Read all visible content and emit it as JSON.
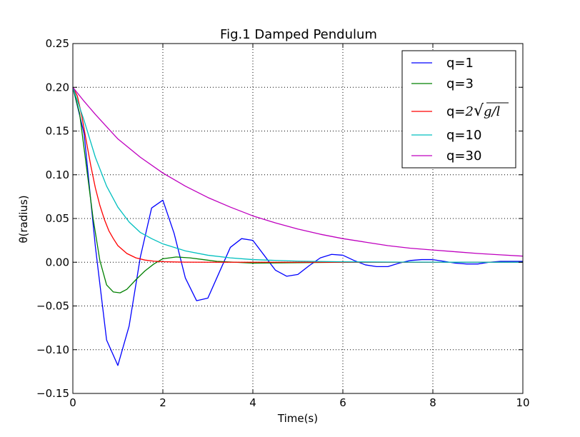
{
  "chart_data": {
    "type": "line",
    "title": "Fig.1 Damped Pendulum",
    "xlabel": "Time(s)",
    "ylabel": "θ(radius)",
    "xlim": [
      0,
      10
    ],
    "ylim": [
      -0.15,
      0.25
    ],
    "xticks": [
      0,
      2,
      4,
      6,
      8,
      10
    ],
    "xtick_labels": [
      "0",
      "2",
      "4",
      "6",
      "8",
      "10"
    ],
    "yticks": [
      -0.15,
      -0.1,
      -0.05,
      0.0,
      0.05,
      0.1,
      0.15,
      0.2,
      0.25
    ],
    "ytick_labels": [
      "−0.15",
      "−0.10",
      "−0.05",
      "0.00",
      "0.05",
      "0.10",
      "0.15",
      "0.20",
      "0.25"
    ],
    "grid": true,
    "legend_position": "top-right",
    "series": [
      {
        "name": "q=1",
        "color": "#0000ff",
        "x": [
          0,
          0.25,
          0.5,
          0.75,
          1.0,
          1.25,
          1.5,
          1.75,
          2.0,
          2.25,
          2.5,
          2.75,
          3.0,
          3.25,
          3.5,
          3.75,
          4.0,
          4.25,
          4.5,
          4.75,
          5.0,
          5.25,
          5.5,
          5.75,
          6.0,
          6.25,
          6.5,
          6.75,
          7.0,
          7.25,
          7.5,
          7.75,
          8.0,
          8.25,
          8.5,
          8.75,
          9.0,
          9.25,
          9.5,
          9.75,
          10.0
        ],
        "y": [
          0.2,
          0.147,
          0.018,
          -0.089,
          -0.118,
          -0.073,
          0.006,
          0.062,
          0.071,
          0.033,
          -0.018,
          -0.044,
          -0.041,
          -0.012,
          0.017,
          0.027,
          0.025,
          0.008,
          -0.009,
          -0.016,
          -0.014,
          -0.004,
          0.005,
          0.009,
          0.008,
          0.002,
          -0.003,
          -0.005,
          -0.005,
          -0.001,
          0.002,
          0.003,
          0.003,
          0.001,
          -0.001,
          -0.002,
          -0.002,
          0.0,
          0.001,
          0.001,
          0.001
        ]
      },
      {
        "name": "q=3",
        "color": "#008000",
        "x": [
          0,
          0.15,
          0.3,
          0.45,
          0.6,
          0.75,
          0.9,
          1.05,
          1.2,
          1.4,
          1.6,
          1.8,
          2.0,
          2.3,
          2.6,
          2.9,
          3.2,
          3.6,
          4.0,
          5.0,
          6.0,
          7.0,
          8.0,
          9.0,
          10.0
        ],
        "y": [
          0.2,
          0.17,
          0.11,
          0.05,
          0.002,
          -0.026,
          -0.034,
          -0.035,
          -0.031,
          -0.02,
          -0.01,
          -0.002,
          0.004,
          0.006,
          0.005,
          0.003,
          0.001,
          0.0,
          -0.001,
          -0.0005,
          0.0,
          0.0,
          0.0,
          0.0,
          0.0
        ]
      },
      {
        "name": "q=2√(g/l)",
        "color": "#ff0000",
        "x": [
          0,
          0.1,
          0.2,
          0.3,
          0.4,
          0.5,
          0.6,
          0.7,
          0.8,
          0.9,
          1.0,
          1.2,
          1.4,
          1.6,
          1.8,
          2.0,
          2.5,
          3.0,
          4.0,
          5.0,
          6.0,
          8.0,
          10.0
        ],
        "y": [
          0.2,
          0.19,
          0.167,
          0.138,
          0.11,
          0.085,
          0.065,
          0.049,
          0.036,
          0.027,
          0.019,
          0.01,
          0.005,
          0.0025,
          0.0012,
          0.0006,
          0.0001,
          0.0,
          0.0,
          0.0,
          0.0,
          0.0,
          0.0
        ]
      },
      {
        "name": "q=10",
        "color": "#00bfbf",
        "x": [
          0,
          0.25,
          0.5,
          0.75,
          1.0,
          1.25,
          1.5,
          1.75,
          2.0,
          2.5,
          3.0,
          3.5,
          4.0,
          5.0,
          6.0,
          7.0,
          8.0,
          9.0,
          10.0
        ],
        "y": [
          0.2,
          0.162,
          0.12,
          0.087,
          0.063,
          0.046,
          0.034,
          0.027,
          0.021,
          0.013,
          0.008,
          0.005,
          0.003,
          0.0012,
          0.0005,
          0.0002,
          0.0001,
          0.0,
          0.0
        ]
      },
      {
        "name": "q=30",
        "color": "#bf00bf",
        "x": [
          0,
          0.25,
          0.5,
          0.75,
          1.0,
          1.5,
          2.0,
          2.5,
          3.0,
          3.5,
          4.0,
          4.5,
          5.0,
          5.5,
          6.0,
          6.5,
          7.0,
          7.5,
          8.0,
          8.5,
          9.0,
          9.5,
          10.0
        ],
        "y": [
          0.2,
          0.184,
          0.169,
          0.155,
          0.141,
          0.12,
          0.102,
          0.087,
          0.074,
          0.063,
          0.053,
          0.045,
          0.038,
          0.032,
          0.027,
          0.023,
          0.019,
          0.016,
          0.014,
          0.012,
          0.01,
          0.0085,
          0.007
        ]
      }
    ]
  }
}
